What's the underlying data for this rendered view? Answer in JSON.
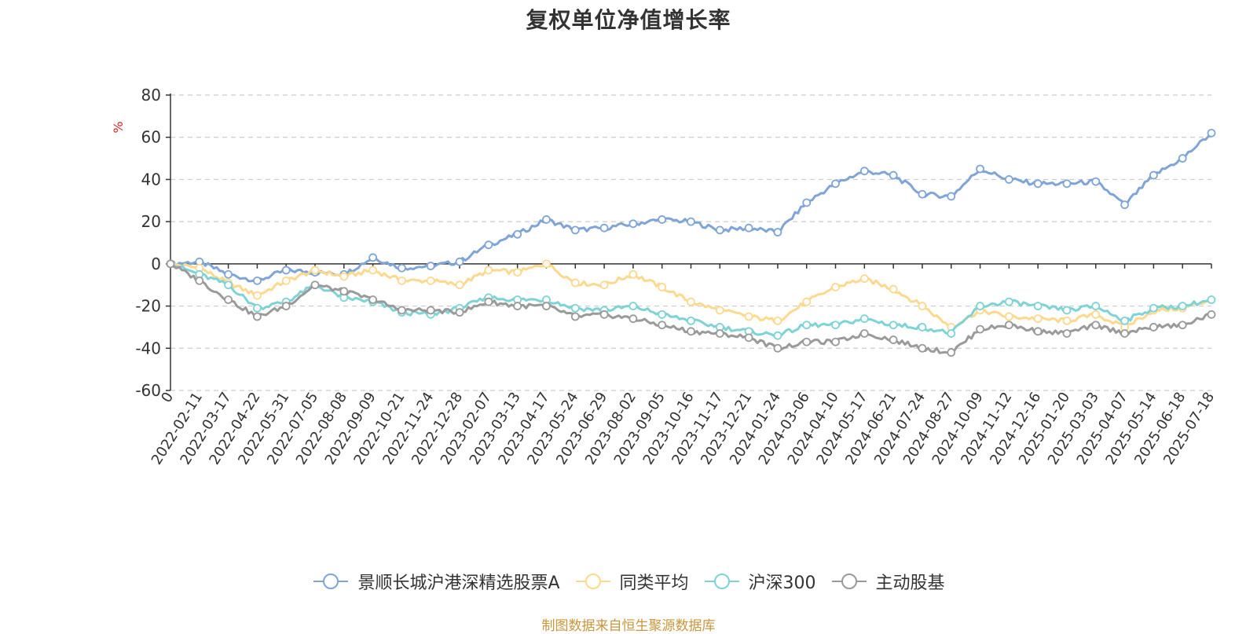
{
  "chart_data": {
    "type": "line",
    "title": "复权单位净值增长率",
    "ylabel": "%",
    "ylim": [
      -60,
      80
    ],
    "yticks": [
      80,
      60,
      40,
      20,
      0,
      -20,
      -40,
      -60
    ],
    "grid": true,
    "legend_position": "bottom",
    "x": [
      "0",
      "2022-02-11",
      "2022-03-17",
      "2022-04-22",
      "2022-05-31",
      "2022-07-05",
      "2022-08-08",
      "2022-09-09",
      "2022-10-21",
      "2022-11-24",
      "2022-12-28",
      "2023-02-07",
      "2023-03-13",
      "2023-04-17",
      "2023-05-24",
      "2023-06-29",
      "2023-08-02",
      "2023-09-05",
      "2023-10-16",
      "2023-11-17",
      "2023-12-21",
      "2024-01-24",
      "2024-03-06",
      "2024-04-10",
      "2024-05-17",
      "2024-06-21",
      "2024-07-24",
      "2024-08-27",
      "2024-10-09",
      "2024-11-12",
      "2024-12-16",
      "2025-01-20",
      "2025-03-03",
      "2025-04-07",
      "2025-05-14",
      "2025-06-18",
      "2025-07-18"
    ],
    "series": [
      {
        "name": "景顺长城沪港深精选股票A",
        "color": "#7fa5d8",
        "values": [
          0,
          1,
          -5,
          -8,
          -3,
          -4,
          -5,
          3,
          -2,
          -1,
          1,
          9,
          14,
          21,
          16,
          17,
          19,
          21,
          20,
          16,
          17,
          15,
          29,
          38,
          44,
          42,
          33,
          32,
          45,
          40,
          38,
          38,
          39,
          28,
          42,
          50,
          62
        ]
      },
      {
        "name": "同类平均",
        "color": "#fcd98c",
        "values": [
          0,
          -2,
          -9,
          -15,
          -8,
          -3,
          -6,
          -3,
          -8,
          -8,
          -10,
          -3,
          -4,
          0,
          -9,
          -10,
          -5,
          -11,
          -18,
          -22,
          -25,
          -27,
          -18,
          -11,
          -7,
          -12,
          -20,
          -30,
          -22,
          -25,
          -26,
          -27,
          -24,
          -30,
          -22,
          -21,
          -17
        ]
      },
      {
        "name": "沪深300",
        "color": "#7ed3d6",
        "values": [
          0,
          -5,
          -10,
          -21,
          -18,
          -10,
          -16,
          -18,
          -23,
          -24,
          -21,
          -16,
          -17,
          -17,
          -21,
          -22,
          -20,
          -24,
          -27,
          -30,
          -32,
          -34,
          -29,
          -29,
          -26,
          -29,
          -30,
          -33,
          -20,
          -18,
          -20,
          -22,
          -20,
          -27,
          -21,
          -20,
          -17
        ]
      },
      {
        "name": "主动股基",
        "color": "#9a9a9a",
        "values": [
          0,
          -8,
          -17,
          -25,
          -20,
          -10,
          -13,
          -17,
          -22,
          -22,
          -23,
          -18,
          -20,
          -20,
          -25,
          -24,
          -26,
          -29,
          -32,
          -33,
          -35,
          -40,
          -37,
          -37,
          -33,
          -36,
          -40,
          -42,
          -31,
          -29,
          -32,
          -33,
          -29,
          -33,
          -30,
          -29,
          -24
        ]
      }
    ]
  },
  "source_note": "制图数据来自恒生聚源数据库"
}
